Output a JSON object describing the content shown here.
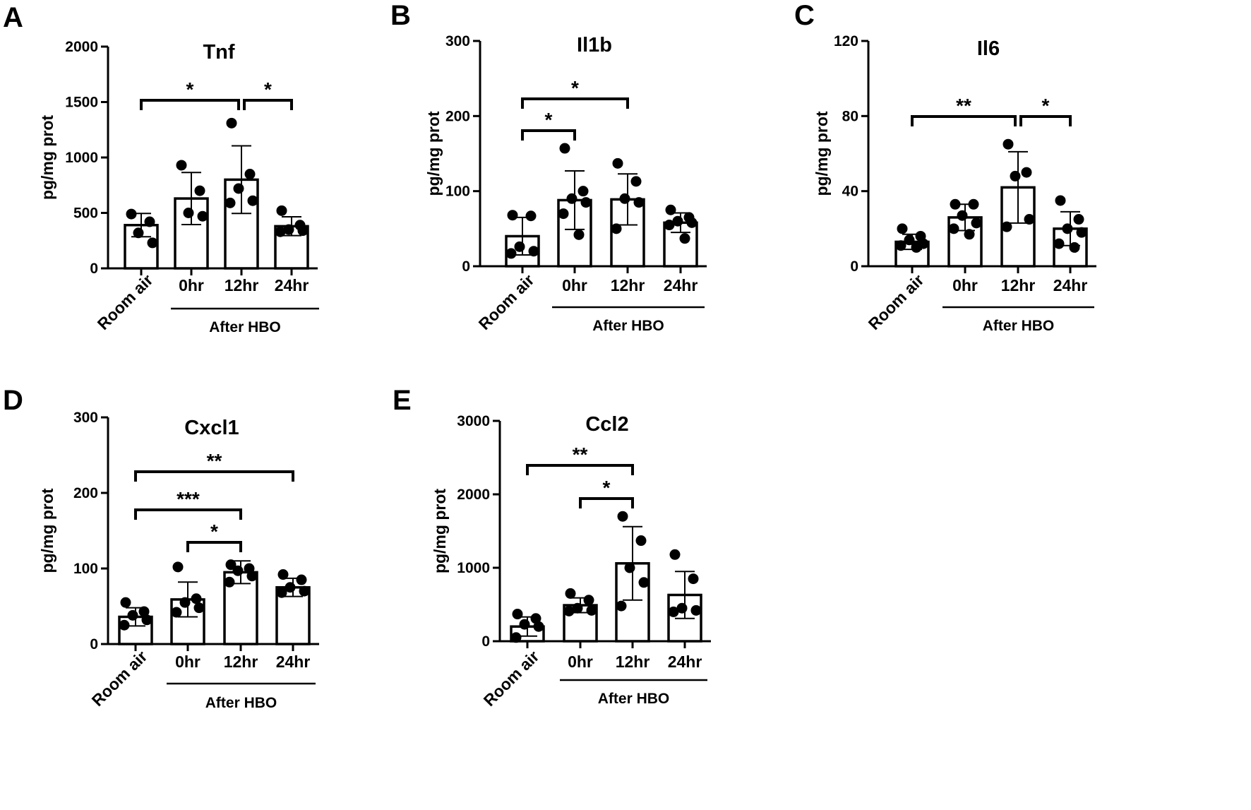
{
  "figure": {
    "background": "#ffffff",
    "ink": "#000000"
  },
  "chart_data": [
    {
      "type": "bar",
      "panel": "A",
      "title": "Tnf",
      "ylabel": "pg/mg prot",
      "xlabel": "",
      "group_label": "After HBO",
      "categories": [
        "Room air",
        "0hr",
        "12hr",
        "24hr"
      ],
      "ylim": [
        0,
        2000
      ],
      "yticks": [
        "0",
        "500",
        "1000",
        "1500",
        "2000"
      ],
      "values": [
        390,
        630,
        800,
        380
      ],
      "errors": [
        105,
        235,
        305,
        85
      ],
      "points": [
        [
          490,
          420,
          320,
          230
        ],
        [
          930,
          700,
          500,
          470
        ],
        [
          1310,
          850,
          720,
          610,
          590
        ],
        [
          520,
          390,
          350,
          340,
          330
        ]
      ],
      "comparisons": [
        {
          "from": "Room air",
          "to": "12hr",
          "label": "*"
        },
        {
          "from": "12hr",
          "to": "24hr",
          "label": "*"
        }
      ]
    },
    {
      "type": "bar",
      "panel": "B",
      "title": "Il1b",
      "ylabel": "pg/mg prot",
      "xlabel": "",
      "group_label": "After HBO",
      "categories": [
        "Room air",
        "0hr",
        "12hr",
        "24hr"
      ],
      "ylim": [
        0,
        300
      ],
      "yticks": [
        "0",
        "100",
        "200",
        "300"
      ],
      "values": [
        40,
        88,
        89,
        58
      ],
      "errors": [
        25,
        39,
        34,
        13
      ],
      "points": [
        [
          68,
          67,
          26,
          20,
          17
        ],
        [
          157,
          100,
          90,
          85,
          70,
          42
        ],
        [
          137,
          113,
          90,
          85,
          50
        ],
        [
          75,
          65,
          60,
          58,
          55,
          37
        ]
      ],
      "comparisons": [
        {
          "from": "Room air",
          "to": "12hr",
          "label": "*"
        },
        {
          "from": "Room air",
          "to": "0hr",
          "label": "*"
        }
      ]
    },
    {
      "type": "bar",
      "panel": "C",
      "title": "Il6",
      "ylabel": "pg/mg prot",
      "xlabel": "",
      "group_label": "After HBO",
      "categories": [
        "Room air",
        "0hr",
        "12hr",
        "24hr"
      ],
      "ylim": [
        0,
        120
      ],
      "yticks": [
        "0",
        "40",
        "80",
        "120"
      ],
      "values": [
        13,
        26,
        42,
        20
      ],
      "errors": [
        4,
        7,
        19,
        9
      ],
      "points": [
        [
          20,
          16,
          14,
          12,
          11,
          10
        ],
        [
          33,
          33,
          27,
          23,
          20,
          17
        ],
        [
          65,
          50,
          48,
          25,
          21
        ],
        [
          35,
          25,
          20,
          18,
          12,
          10
        ]
      ],
      "comparisons": [
        {
          "from": "Room air",
          "to": "12hr",
          "label": "**"
        },
        {
          "from": "12hr",
          "to": "24hr",
          "label": "*"
        }
      ]
    },
    {
      "type": "bar",
      "panel": "D",
      "title": "Cxcl1",
      "ylabel": "pg/mg prot",
      "xlabel": "",
      "group_label": "After HBO",
      "categories": [
        "Room air",
        "0hr",
        "12hr",
        "24hr"
      ],
      "ylim": [
        0,
        300
      ],
      "yticks": [
        "0",
        "100",
        "200",
        "300"
      ],
      "values": [
        36,
        59,
        95,
        75
      ],
      "errors": [
        12,
        23,
        15,
        12
      ],
      "points": [
        [
          55,
          43,
          38,
          32,
          25
        ],
        [
          102,
          60,
          55,
          48,
          42
        ],
        [
          105,
          100,
          97,
          90,
          82
        ],
        [
          92,
          85,
          75,
          70,
          68
        ]
      ],
      "comparisons": [
        {
          "from": "Room air",
          "to": "24hr",
          "label": "**"
        },
        {
          "from": "Room air",
          "to": "12hr",
          "label": "***"
        },
        {
          "from": "0hr",
          "to": "12hr",
          "label": "*"
        }
      ]
    },
    {
      "type": "bar",
      "panel": "E",
      "title": "Ccl2",
      "ylabel": "pg/mg prot",
      "xlabel": "",
      "group_label": "After HBO",
      "categories": [
        "Room air",
        "0hr",
        "12hr",
        "24hr"
      ],
      "ylim": [
        0,
        3000
      ],
      "yticks": [
        "0",
        "1000",
        "2000",
        "3000"
      ],
      "values": [
        200,
        490,
        1060,
        630
      ],
      "errors": [
        130,
        100,
        500,
        320
      ],
      "points": [
        [
          370,
          310,
          230,
          200,
          50
        ],
        [
          650,
          560,
          450,
          420,
          410
        ],
        [
          1700,
          1370,
          1000,
          800,
          480
        ],
        [
          1180,
          850,
          450,
          420,
          400
        ]
      ],
      "comparisons": [
        {
          "from": "Room air",
          "to": "12hr",
          "label": "**"
        },
        {
          "from": "0hr",
          "to": "12hr",
          "label": "*"
        }
      ]
    }
  ]
}
